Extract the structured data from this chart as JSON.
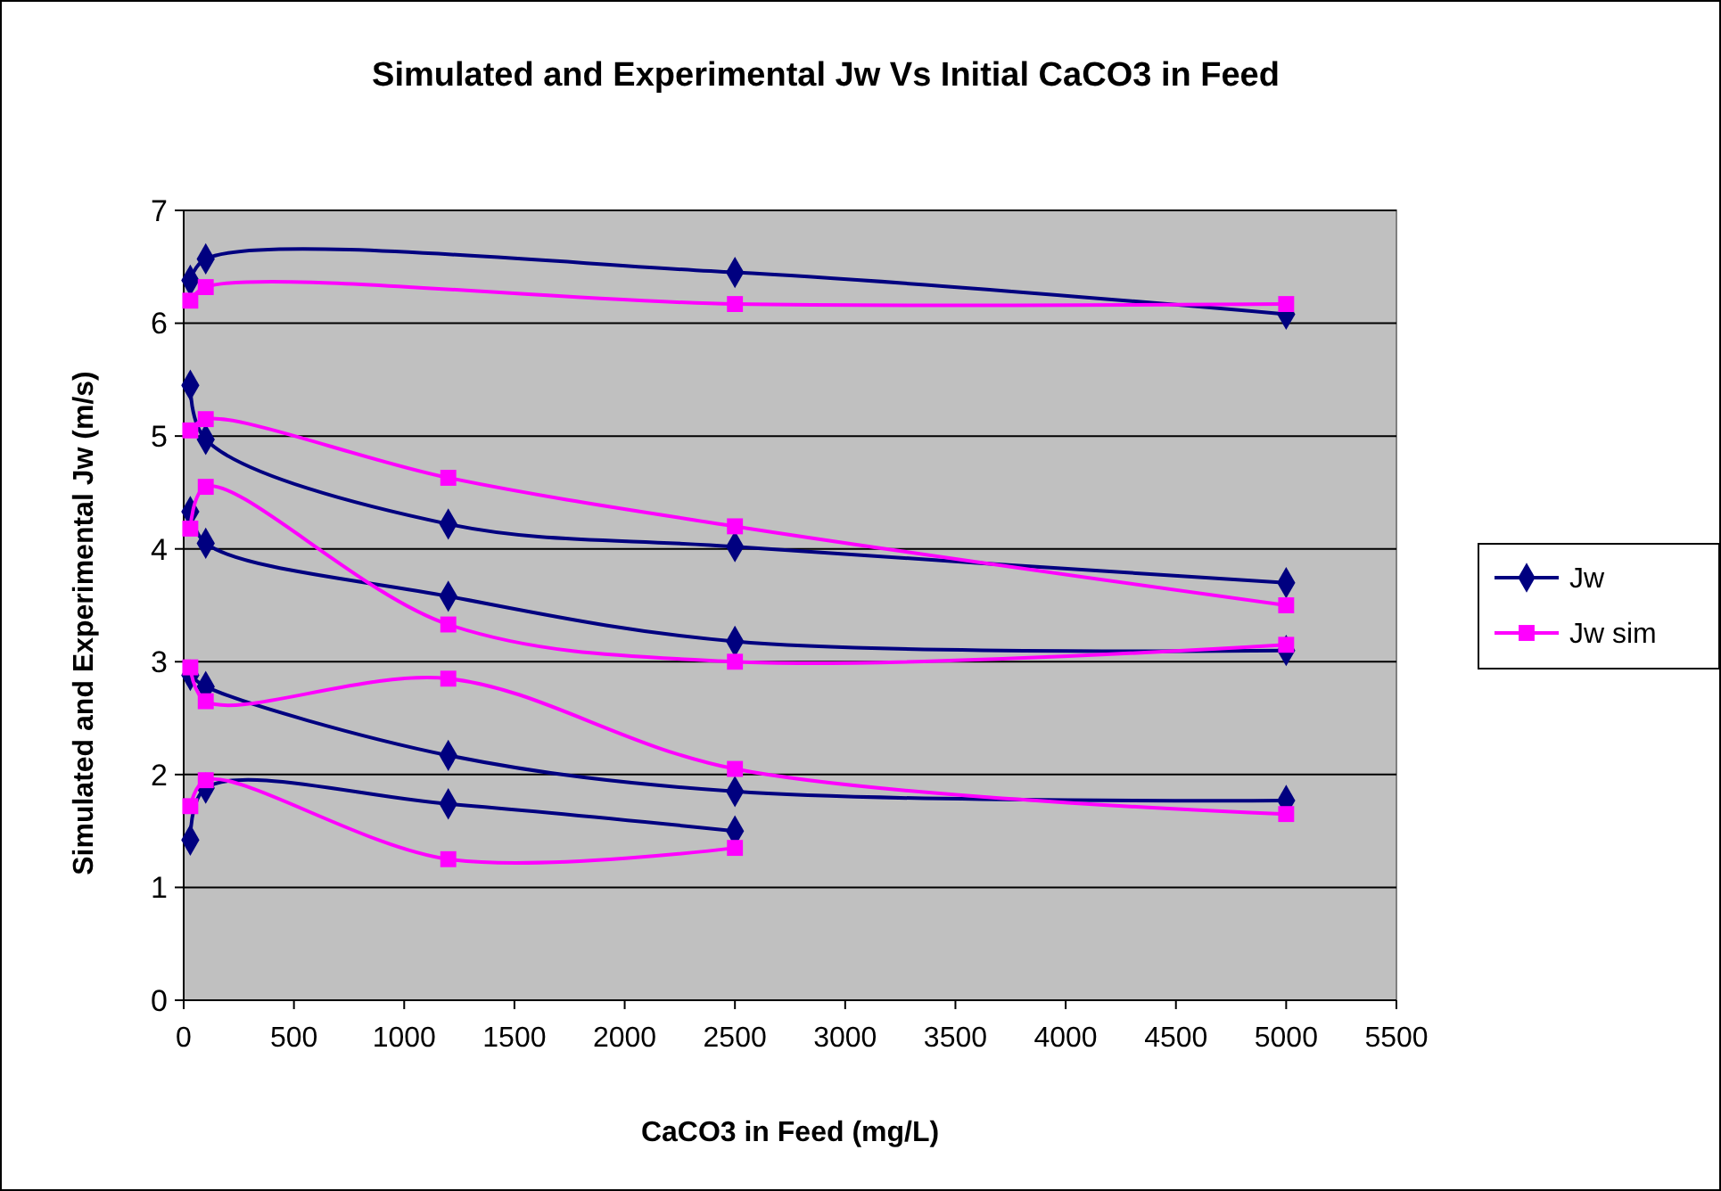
{
  "chart_data": {
    "type": "line",
    "title": "Simulated and Experimental Jw Vs Initial CaCO3 in Feed",
    "xlabel": "CaCO3 in Feed (mg/L)",
    "ylabel": "Simulated and Experimental Jw (m/s)",
    "xlim": [
      0,
      5500
    ],
    "xticks": [
      0,
      500,
      1000,
      1500,
      2000,
      2500,
      3000,
      3500,
      4000,
      4500,
      5000,
      5500
    ],
    "ylim": [
      0,
      7
    ],
    "yticks": [
      0,
      1,
      2,
      3,
      4,
      5,
      6,
      7
    ],
    "grid": "y",
    "legend": "right",
    "series": [
      {
        "name": "Jw",
        "color": "#000080",
        "marker": "diamond",
        "x": [
          30,
          100,
          2500,
          5000
        ],
        "values": [
          6.38,
          6.57,
          6.45,
          6.08
        ]
      },
      {
        "name": "Jw sim",
        "color": "#ff00ff",
        "marker": "square",
        "x": [
          30,
          100,
          2500,
          5000
        ],
        "values": [
          6.2,
          6.32,
          6.17,
          6.17
        ]
      },
      {
        "color": "#000080",
        "marker": "diamond",
        "x": [
          30,
          100,
          1200,
          2500,
          5000
        ],
        "values": [
          5.45,
          4.97,
          4.22,
          4.02,
          3.7
        ]
      },
      {
        "color": "#ff00ff",
        "marker": "square",
        "x": [
          30,
          100,
          1200,
          2500,
          5000
        ],
        "values": [
          5.05,
          5.15,
          4.63,
          4.2,
          3.5
        ]
      },
      {
        "color": "#000080",
        "marker": "diamond",
        "x": [
          30,
          100,
          1200,
          2500,
          5000
        ],
        "values": [
          4.33,
          4.05,
          3.58,
          3.18,
          3.1
        ]
      },
      {
        "color": "#ff00ff",
        "marker": "square",
        "x": [
          30,
          100,
          1200,
          2500,
          5000
        ],
        "values": [
          4.18,
          4.55,
          3.33,
          3.0,
          3.15
        ]
      },
      {
        "color": "#000080",
        "marker": "diamond",
        "x": [
          30,
          100,
          1200,
          2500,
          5000
        ],
        "values": [
          2.88,
          2.78,
          2.17,
          1.85,
          1.77
        ]
      },
      {
        "color": "#ff00ff",
        "marker": "square",
        "x": [
          30,
          100,
          1200,
          2500,
          5000
        ],
        "values": [
          2.95,
          2.65,
          2.85,
          2.05,
          1.65
        ]
      },
      {
        "color": "#000080",
        "marker": "diamond",
        "x": [
          30,
          100,
          1200,
          2500
        ],
        "values": [
          1.42,
          1.88,
          1.74,
          1.5
        ]
      },
      {
        "color": "#ff00ff",
        "marker": "square",
        "x": [
          30,
          100,
          1200,
          2500
        ],
        "values": [
          1.72,
          1.95,
          1.25,
          1.35
        ]
      }
    ]
  }
}
